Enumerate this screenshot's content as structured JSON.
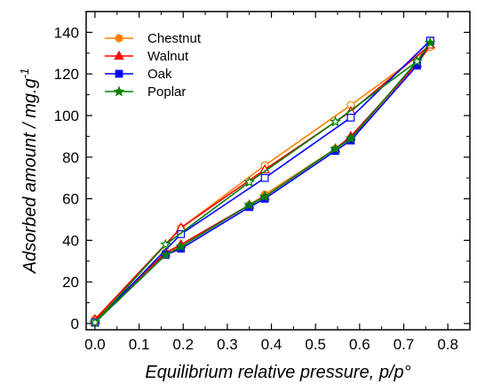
{
  "chart_data": {
    "type": "line",
    "xlabel": "Equilibrium relative pressure, p/p°",
    "ylabel_main": "Adsorbed amount / mg.g",
    "ylabel_sup": "-1",
    "xlim": [
      -0.02,
      0.85
    ],
    "ylim": [
      -3,
      150
    ],
    "xticks": [
      0.0,
      0.1,
      0.2,
      0.3,
      0.4,
      0.5,
      0.6,
      0.7,
      0.8
    ],
    "xtick_labels": [
      "0.0",
      "0.1",
      "0.2",
      "0.3",
      "0.4",
      "0.5",
      "0.6",
      "0.7",
      "0.8"
    ],
    "yticks": [
      0,
      20,
      40,
      60,
      80,
      100,
      120,
      140
    ],
    "ytick_labels": [
      "0",
      "20",
      "40",
      "60",
      "80",
      "100",
      "120",
      "140"
    ],
    "legend_position": "top-left",
    "series": [
      {
        "name": "Chestnut",
        "color": "#ff8000",
        "marker": "circle",
        "adsorption": {
          "x": [
            0.0,
            0.16,
            0.195,
            0.35,
            0.385,
            0.545,
            0.58,
            0.73,
            0.76
          ],
          "y": [
            2,
            34,
            37,
            57,
            62,
            84,
            89,
            125,
            133
          ]
        },
        "desorption": {
          "x": [
            0.76,
            0.58,
            0.385,
            0.195,
            0.0
          ],
          "y": [
            133,
            105,
            76,
            46,
            2
          ]
        }
      },
      {
        "name": "Walnut",
        "color": "#ff0000",
        "marker": "triangle",
        "adsorption": {
          "x": [
            0.0,
            0.16,
            0.195,
            0.35,
            0.385,
            0.545,
            0.58,
            0.73,
            0.76
          ],
          "y": [
            1.5,
            34,
            38,
            57,
            61,
            84,
            90,
            125,
            134
          ]
        },
        "desorption": {
          "x": [
            0.76,
            0.58,
            0.385,
            0.195,
            0.0
          ],
          "y": [
            134,
            102,
            74,
            46,
            2
          ]
        }
      },
      {
        "name": "Oak",
        "color": "#0000ff",
        "marker": "square",
        "adsorption": {
          "x": [
            0.0,
            0.16,
            0.195,
            0.35,
            0.385,
            0.545,
            0.58,
            0.73,
            0.76
          ],
          "y": [
            0.5,
            33,
            36,
            56,
            60,
            83,
            88,
            124,
            136
          ]
        },
        "desorption": {
          "x": [
            0.76,
            0.58,
            0.385,
            0.195,
            0.0
          ],
          "y": [
            136,
            99,
            70,
            43,
            0.5
          ]
        }
      },
      {
        "name": "Poplar",
        "color": "#008000",
        "marker": "star",
        "adsorption": {
          "x": [
            0.0,
            0.16,
            0.195,
            0.35,
            0.385,
            0.545,
            0.58,
            0.73,
            0.76
          ],
          "y": [
            0.5,
            33,
            37,
            57,
            61,
            84,
            89,
            126,
            135
          ]
        },
        "desorption": {
          "x": [
            0.73,
            0.545,
            0.35,
            0.16,
            0.0
          ],
          "y": [
            126,
            97,
            68,
            38,
            0.5
          ]
        }
      }
    ]
  }
}
